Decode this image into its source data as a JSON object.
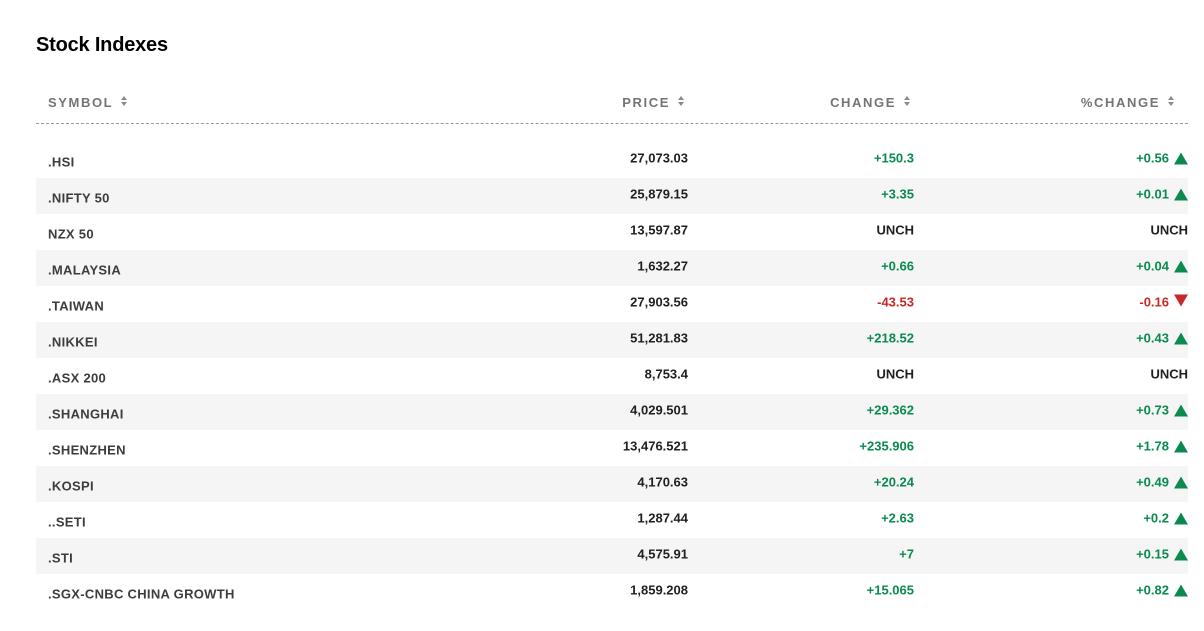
{
  "title": "Stock Indexes",
  "columns": {
    "symbol": "SYMBOL",
    "price": "PRICE",
    "change": "CHANGE",
    "pct_change": "%CHANGE"
  },
  "colors": {
    "positive": "#0b8a4f",
    "negative": "#c62828",
    "neutral": "#1f1f1f"
  },
  "rows": [
    {
      "symbol": ".HSI",
      "price": "27,073.03",
      "change": "+150.3",
      "pct": "+0.56",
      "dir": "up"
    },
    {
      "symbol": ".NIFTY 50",
      "price": "25,879.15",
      "change": "+3.35",
      "pct": "+0.01",
      "dir": "up"
    },
    {
      "symbol": "NZX 50",
      "price": "13,597.87",
      "change": "UNCH",
      "pct": "UNCH",
      "dir": "none"
    },
    {
      "symbol": ".MALAYSIA",
      "price": "1,632.27",
      "change": "+0.66",
      "pct": "+0.04",
      "dir": "up"
    },
    {
      "symbol": ".TAIWAN",
      "price": "27,903.56",
      "change": "-43.53",
      "pct": "-0.16",
      "dir": "down"
    },
    {
      "symbol": ".NIKKEI",
      "price": "51,281.83",
      "change": "+218.52",
      "pct": "+0.43",
      "dir": "up"
    },
    {
      "symbol": ".ASX 200",
      "price": "8,753.4",
      "change": "UNCH",
      "pct": "UNCH",
      "dir": "none"
    },
    {
      "symbol": ".SHANGHAI",
      "price": "4,029.501",
      "change": "+29.362",
      "pct": "+0.73",
      "dir": "up"
    },
    {
      "symbol": ".SHENZHEN",
      "price": "13,476.521",
      "change": "+235.906",
      "pct": "+1.78",
      "dir": "up"
    },
    {
      "symbol": ".KOSPI",
      "price": "4,170.63",
      "change": "+20.24",
      "pct": "+0.49",
      "dir": "up"
    },
    {
      "symbol": "..SETI",
      "price": "1,287.44",
      "change": "+2.63",
      "pct": "+0.2",
      "dir": "up"
    },
    {
      "symbol": ".STI",
      "price": "4,575.91",
      "change": "+7",
      "pct": "+0.15",
      "dir": "up"
    },
    {
      "symbol": ".SGX-CNBC CHINA GROWTH",
      "price": "1,859.208",
      "change": "+15.065",
      "pct": "+0.82",
      "dir": "up"
    }
  ]
}
